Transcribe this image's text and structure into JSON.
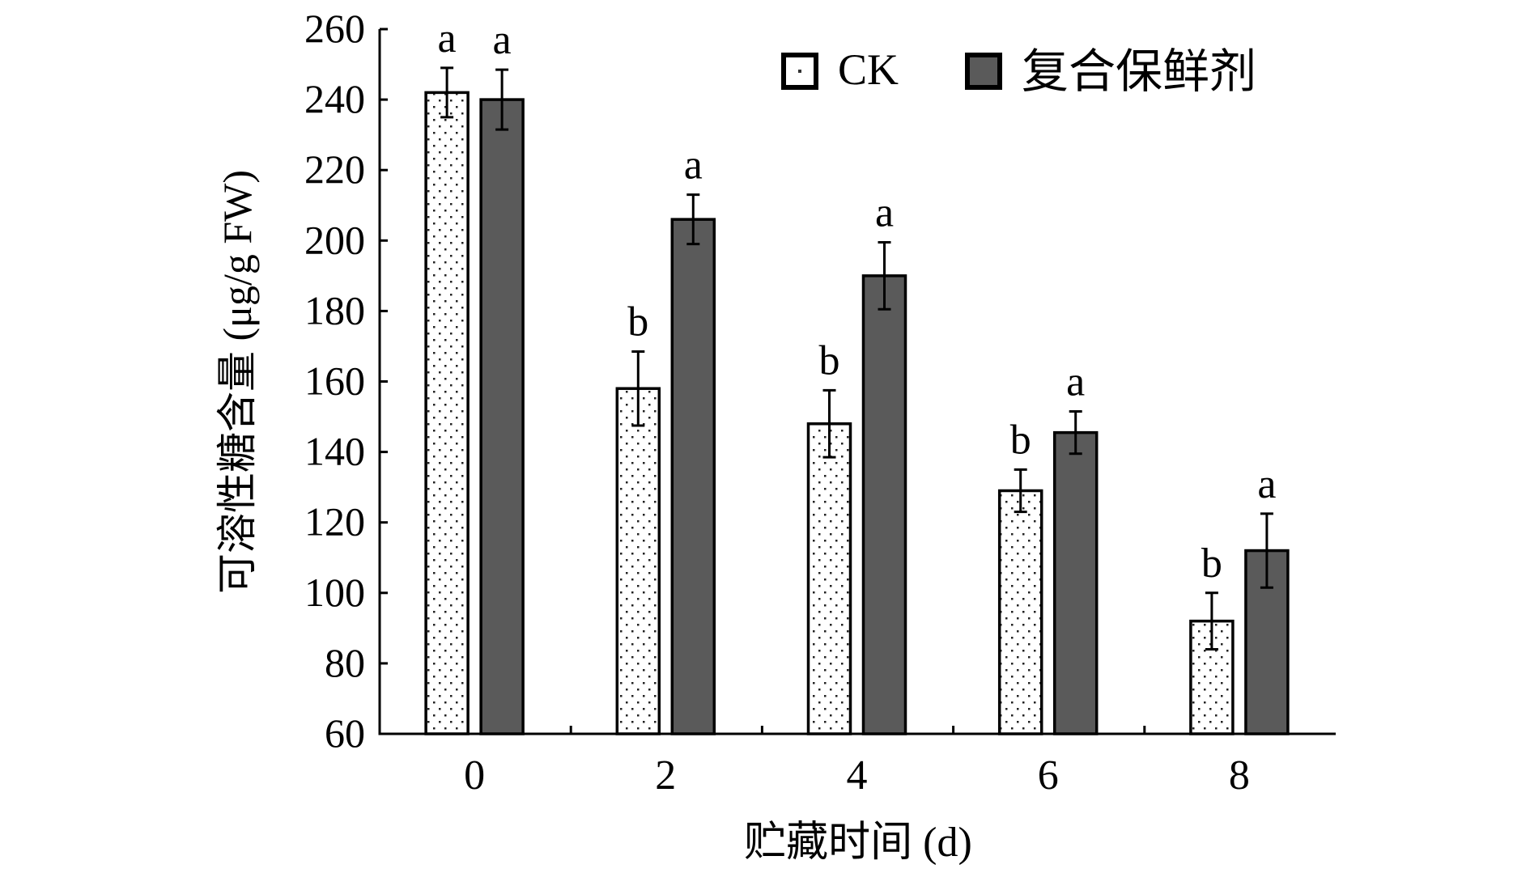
{
  "chart_data": {
    "type": "bar",
    "title": "",
    "xlabel": "贮藏时间 (d)",
    "ylabel": "可溶性糖含量 (μg/g FW)",
    "ylim": [
      60,
      260
    ],
    "yticks": [
      60,
      80,
      100,
      120,
      140,
      160,
      180,
      200,
      220,
      240,
      260
    ],
    "categories": [
      "0",
      "2",
      "4",
      "6",
      "8"
    ],
    "legend_position": "top-right",
    "grid": false,
    "series": [
      {
        "name": "CK",
        "pattern": "dotted-white",
        "color": "#ffffff",
        "values": [
          242,
          158,
          148,
          129,
          92
        ],
        "errors": [
          7,
          10.5,
          9.5,
          6,
          8
        ],
        "letters": [
          "a",
          "b",
          "b",
          "b",
          "b"
        ]
      },
      {
        "name": "复合保鲜剂",
        "pattern": "dark-gray",
        "color": "#5a5a5a",
        "values": [
          240,
          206,
          190,
          145.5,
          112
        ],
        "errors": [
          8.5,
          7,
          9.5,
          6,
          10.5
        ],
        "letters": [
          "a",
          "a",
          "a",
          "a",
          "a"
        ]
      }
    ]
  }
}
